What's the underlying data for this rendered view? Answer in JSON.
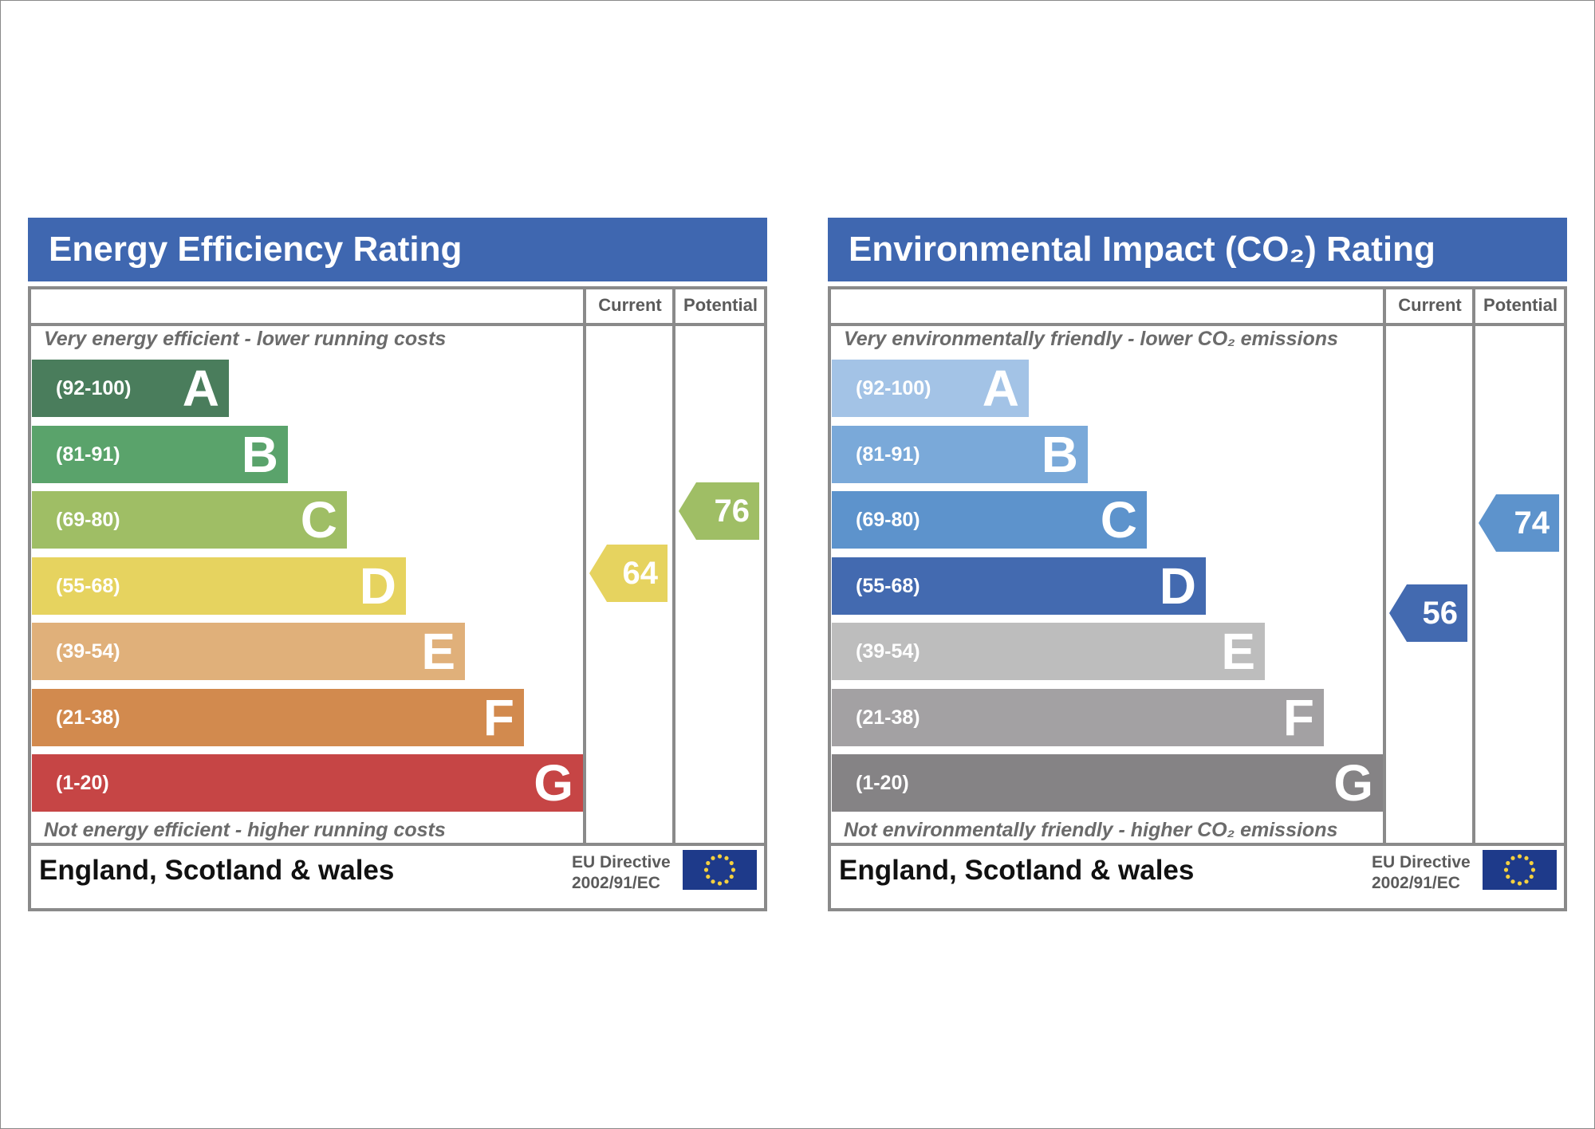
{
  "chart_data": [
    {
      "type": "bar",
      "title": "Energy Efficiency Rating",
      "column_headers": [
        "Current",
        "Potential"
      ],
      "top_note": "Very energy efficient - lower running costs",
      "bottom_note": "Not energy efficient - higher running costs",
      "bands": [
        {
          "letter": "A",
          "range": "(92-100)",
          "color": "#4a7d5c"
        },
        {
          "letter": "B",
          "range": "(81-91)",
          "color": "#5aa36b"
        },
        {
          "letter": "C",
          "range": "(69-80)",
          "color": "#9fbe65"
        },
        {
          "letter": "D",
          "range": "(55-68)",
          "color": "#e6d35f"
        },
        {
          "letter": "E",
          "range": "(39-54)",
          "color": "#e0b07a"
        },
        {
          "letter": "F",
          "range": "(21-38)",
          "color": "#d28a4e"
        },
        {
          "letter": "G",
          "range": "(1-20)",
          "color": "#c64545"
        }
      ],
      "current": {
        "value": 64,
        "band": "D",
        "color": "#e6d35f"
      },
      "potential": {
        "value": 76,
        "band": "C",
        "color": "#9fbe65"
      },
      "footer": {
        "region": "England, Scotland & wales",
        "directive_line1": "EU Directive",
        "directive_line2": "2002/91/EC"
      }
    },
    {
      "type": "bar",
      "title": "Environmental Impact (CO₂) Rating",
      "column_headers": [
        "Current",
        "Potential"
      ],
      "top_note": "Very environmentally friendly - lower CO₂ emissions",
      "bottom_note": "Not environmentally friendly - higher CO₂ emissions",
      "bands": [
        {
          "letter": "A",
          "range": "(92-100)",
          "color": "#a3c3e6"
        },
        {
          "letter": "B",
          "range": "(81-91)",
          "color": "#7aa9d9"
        },
        {
          "letter": "C",
          "range": "(69-80)",
          "color": "#5d93cc"
        },
        {
          "letter": "D",
          "range": "(55-68)",
          "color": "#436ab0"
        },
        {
          "letter": "E",
          "range": "(39-54)",
          "color": "#bdbdbd"
        },
        {
          "letter": "F",
          "range": "(21-38)",
          "color": "#a3a1a3"
        },
        {
          "letter": "G",
          "range": "(1-20)",
          "color": "#858385"
        }
      ],
      "current": {
        "value": 56,
        "band": "D",
        "color": "#436ab0"
      },
      "potential": {
        "value": 74,
        "band": "C",
        "color": "#5d93cc"
      },
      "footer": {
        "region": "England, Scotland & wales",
        "directive_line1": "EU Directive",
        "directive_line2": "2002/91/EC"
      }
    }
  ]
}
